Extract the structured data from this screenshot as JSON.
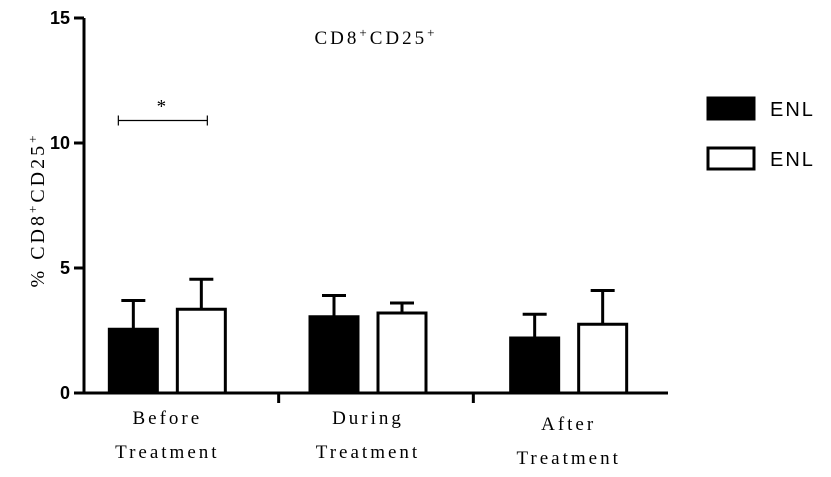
{
  "chart_data": {
    "type": "bar",
    "title_parts": [
      "CD8",
      "+",
      "CD25",
      "+"
    ],
    "ylabel_parts": [
      "% CD8",
      "+",
      "CD25",
      "+"
    ],
    "xlabel": "",
    "categories": [
      [
        "Before",
        "Treatment"
      ],
      [
        "During",
        "Treatment"
      ],
      [
        "After",
        "Treatment"
      ]
    ],
    "ylim": [
      0,
      15
    ],
    "yticks": [
      0,
      5,
      10,
      15
    ],
    "series": [
      {
        "name": "ENL",
        "fill": "#000000",
        "values": [
          2.55,
          3.05,
          2.2
        ],
        "errors": [
          1.15,
          0.85,
          0.95
        ]
      },
      {
        "name": "ENL",
        "fill": "#ffffff",
        "values": [
          3.35,
          3.2,
          2.75
        ],
        "errors": [
          1.2,
          0.4,
          1.35
        ]
      }
    ],
    "annotations": [
      {
        "text": "*",
        "from_category": 0,
        "from_series": 0,
        "to_category": 0,
        "to_series": 1,
        "y": 10.9
      }
    ],
    "grid": false,
    "legend_position": "right"
  }
}
